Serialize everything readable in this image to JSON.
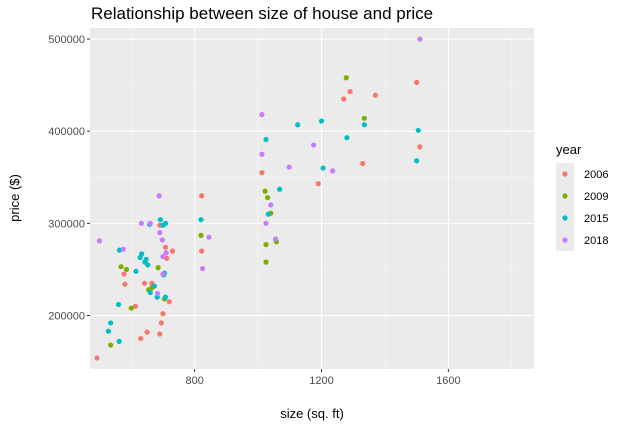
{
  "colors": {
    "panel_bg": "#ebebeb",
    "grid_major": "#ffffff",
    "grid_minor": "#f5f5f5",
    "tick": "#333333"
  },
  "chart_data": {
    "type": "scatter",
    "title": "Relationship between size of house and price",
    "xlabel": "size (sq. ft)",
    "ylabel": "price ($)",
    "xlim": [
      470,
      1870
    ],
    "ylim": [
      142000,
      512000
    ],
    "x_ticks": [
      800,
      1200,
      1600
    ],
    "x_tick_labels": [
      "800",
      "1200",
      "1600"
    ],
    "y_ticks": [
      200000,
      300000,
      400000,
      500000
    ],
    "y_tick_labels": [
      "200000",
      "300000",
      "400000",
      "500000"
    ],
    "x_minor": [
      600,
      1000,
      1400,
      1800
    ],
    "y_minor": [
      150000,
      250000,
      350000,
      450000
    ],
    "grid": true,
    "legend": {
      "title": "year",
      "placement": "right",
      "entries": [
        "2006",
        "2009",
        "2015",
        "2018"
      ]
    },
    "series": [
      {
        "name": "2006",
        "color": "#F8766D",
        "points": [
          [
            492,
            154000
          ],
          [
            577,
            245000
          ],
          [
            580,
            234000
          ],
          [
            613,
            210000
          ],
          [
            630,
            175000
          ],
          [
            642,
            235000
          ],
          [
            650,
            182000
          ],
          [
            665,
            235000
          ],
          [
            690,
            180000
          ],
          [
            695,
            192000
          ],
          [
            700,
            202000
          ],
          [
            690,
            298000
          ],
          [
            708,
            274000
          ],
          [
            712,
            262000
          ],
          [
            720,
            215000
          ],
          [
            730,
            270000
          ],
          [
            822,
            270000
          ],
          [
            822,
            330000
          ],
          [
            1012,
            355000
          ],
          [
            1190,
            343000
          ],
          [
            1270,
            435000
          ],
          [
            1290,
            443000
          ],
          [
            1330,
            365000
          ],
          [
            1370,
            439000
          ],
          [
            1500,
            453000
          ],
          [
            1510,
            383000
          ]
        ]
      },
      {
        "name": "2009",
        "color": "#7CAE00",
        "points": [
          [
            535,
            168000
          ],
          [
            568,
            253000
          ],
          [
            585,
            250000
          ],
          [
            600,
            208000
          ],
          [
            655,
            228000
          ],
          [
            665,
            230000
          ],
          [
            685,
            252000
          ],
          [
            705,
            218000
          ],
          [
            820,
            287000
          ],
          [
            1022,
            335000
          ],
          [
            1025,
            258000
          ],
          [
            1025,
            277000
          ],
          [
            1030,
            328000
          ],
          [
            1040,
            311000
          ],
          [
            1058,
            280000
          ],
          [
            1278,
            458000
          ],
          [
            1335,
            414000
          ]
        ]
      },
      {
        "name": "2015",
        "color": "#00BFC4",
        "points": [
          [
            528,
            183000
          ],
          [
            535,
            192000
          ],
          [
            560,
            212000
          ],
          [
            562,
            172000
          ],
          [
            563,
            271000
          ],
          [
            615,
            248000
          ],
          [
            628,
            263000
          ],
          [
            633,
            267000
          ],
          [
            643,
            258000
          ],
          [
            647,
            261000
          ],
          [
            652,
            255000
          ],
          [
            658,
            299000
          ],
          [
            660,
            225000
          ],
          [
            673,
            232000
          ],
          [
            682,
            220000
          ],
          [
            692,
            304000
          ],
          [
            700,
            298000
          ],
          [
            702,
            244000
          ],
          [
            705,
            246000
          ],
          [
            708,
            300000
          ],
          [
            708,
            220000
          ],
          [
            820,
            304000
          ],
          [
            1025,
            391000
          ],
          [
            1032,
            310000
          ],
          [
            1068,
            337000
          ],
          [
            1125,
            407000
          ],
          [
            1200,
            411000
          ],
          [
            1205,
            360000
          ],
          [
            1280,
            393000
          ],
          [
            1335,
            407000
          ],
          [
            1500,
            368000
          ],
          [
            1505,
            401000
          ]
        ]
      },
      {
        "name": "2018",
        "color": "#C77CFF",
        "points": [
          [
            500,
            281000
          ],
          [
            575,
            272000
          ],
          [
            632,
            300000
          ],
          [
            660,
            300000
          ],
          [
            683,
            224000
          ],
          [
            688,
            330000
          ],
          [
            690,
            290000
          ],
          [
            698,
            282000
          ],
          [
            700,
            264000
          ],
          [
            700,
            245000
          ],
          [
            710,
            268000
          ],
          [
            825,
            251000
          ],
          [
            845,
            285000
          ],
          [
            1012,
            418000
          ],
          [
            1012,
            375000
          ],
          [
            1025,
            300000
          ],
          [
            1040,
            320000
          ],
          [
            1055,
            283000
          ],
          [
            1098,
            361000
          ],
          [
            1175,
            385000
          ],
          [
            1235,
            357000
          ],
          [
            1510,
            500000
          ]
        ]
      }
    ]
  }
}
